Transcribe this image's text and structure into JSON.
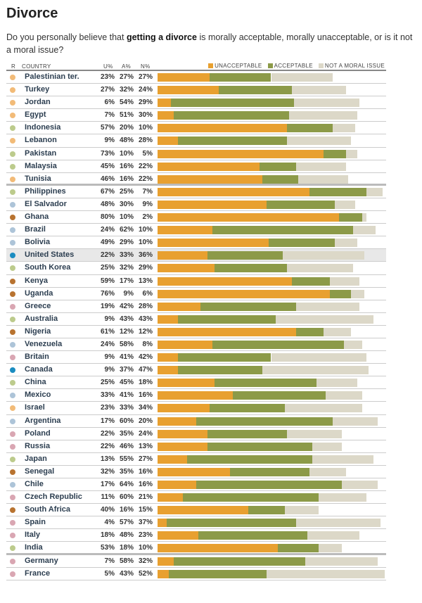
{
  "title": "Divorce",
  "question": {
    "pre": "Do you personally believe that ",
    "bold": "getting a divorce",
    "post": " is morally acceptable, morally unacceptable, or is it not a moral issue?"
  },
  "chart_data": {
    "type": "bar",
    "stacked": true,
    "orientation": "horizontal",
    "columns": {
      "region": "R",
      "country": "COUNTRY",
      "u": "U%",
      "a": "A%",
      "n": "N%"
    },
    "legend": [
      {
        "name": "UNACCEPTABLE",
        "color": "#e8a030"
      },
      {
        "name": "ACCEPTABLE",
        "color": "#8c9a48"
      },
      {
        "name": "NOT A MORAL ISSUE",
        "color": "#dcd8c8"
      }
    ],
    "legend_position": "top-right",
    "xlim": [
      0,
      100
    ],
    "region_colors": {
      "mideast": "#f2bb78",
      "asia": "#bccb8c",
      "latam": "#adc4d8",
      "africa": "#b87330",
      "europe": "#d9a6b2",
      "northam": "#1a8cc0"
    },
    "rows": [
      {
        "country": "Palestinian ter.",
        "region": "mideast",
        "u": 23,
        "a": 27,
        "n": 27
      },
      {
        "country": "Turkey",
        "region": "mideast",
        "u": 27,
        "a": 32,
        "n": 24
      },
      {
        "country": "Jordan",
        "region": "mideast",
        "u": 6,
        "a": 54,
        "n": 29
      },
      {
        "country": "Egypt",
        "region": "mideast",
        "u": 7,
        "a": 51,
        "n": 30
      },
      {
        "country": "Indonesia",
        "region": "asia",
        "u": 57,
        "a": 20,
        "n": 10
      },
      {
        "country": "Lebanon",
        "region": "mideast",
        "u": 9,
        "a": 48,
        "n": 28
      },
      {
        "country": "Pakistan",
        "region": "asia",
        "u": 73,
        "a": 10,
        "n": 5
      },
      {
        "country": "Malaysia",
        "region": "asia",
        "u": 45,
        "a": 16,
        "n": 22
      },
      {
        "country": "Tunisia",
        "region": "mideast",
        "u": 46,
        "a": 16,
        "n": 22
      },
      {
        "country": "Philippines",
        "region": "asia",
        "u": 67,
        "a": 25,
        "n": 7
      },
      {
        "country": "El Salvador",
        "region": "latam",
        "u": 48,
        "a": 30,
        "n": 9
      },
      {
        "country": "Ghana",
        "region": "africa",
        "u": 80,
        "a": 10,
        "n": 2
      },
      {
        "country": "Brazil",
        "region": "latam",
        "u": 24,
        "a": 62,
        "n": 10
      },
      {
        "country": "Bolivia",
        "region": "latam",
        "u": 49,
        "a": 29,
        "n": 10
      },
      {
        "country": "United States",
        "region": "northam",
        "u": 22,
        "a": 33,
        "n": 36,
        "highlight": true
      },
      {
        "country": "South Korea",
        "region": "asia",
        "u": 25,
        "a": 32,
        "n": 29
      },
      {
        "country": "Kenya",
        "region": "africa",
        "u": 59,
        "a": 17,
        "n": 13
      },
      {
        "country": "Uganda",
        "region": "africa",
        "u": 76,
        "a": 9,
        "n": 6
      },
      {
        "country": "Greece",
        "region": "europe",
        "u": 19,
        "a": 42,
        "n": 28
      },
      {
        "country": "Australia",
        "region": "asia",
        "u": 9,
        "a": 43,
        "n": 43
      },
      {
        "country": "Nigeria",
        "region": "africa",
        "u": 61,
        "a": 12,
        "n": 12
      },
      {
        "country": "Venezuela",
        "region": "latam",
        "u": 24,
        "a": 58,
        "n": 8
      },
      {
        "country": "Britain",
        "region": "europe",
        "u": 9,
        "a": 41,
        "n": 42
      },
      {
        "country": "Canada",
        "region": "northam",
        "u": 9,
        "a": 37,
        "n": 47
      },
      {
        "country": "China",
        "region": "asia",
        "u": 25,
        "a": 45,
        "n": 18
      },
      {
        "country": "Mexico",
        "region": "latam",
        "u": 33,
        "a": 41,
        "n": 16
      },
      {
        "country": "Israel",
        "region": "mideast",
        "u": 23,
        "a": 33,
        "n": 34
      },
      {
        "country": "Argentina",
        "region": "latam",
        "u": 17,
        "a": 60,
        "n": 20
      },
      {
        "country": "Poland",
        "region": "europe",
        "u": 22,
        "a": 35,
        "n": 24
      },
      {
        "country": "Russia",
        "region": "europe",
        "u": 22,
        "a": 46,
        "n": 13
      },
      {
        "country": "Japan",
        "region": "asia",
        "u": 13,
        "a": 55,
        "n": 27
      },
      {
        "country": "Senegal",
        "region": "africa",
        "u": 32,
        "a": 35,
        "n": 16
      },
      {
        "country": "Chile",
        "region": "latam",
        "u": 17,
        "a": 64,
        "n": 16
      },
      {
        "country": "Czech Republic",
        "region": "europe",
        "u": 11,
        "a": 60,
        "n": 21
      },
      {
        "country": "South Africa",
        "region": "africa",
        "u": 40,
        "a": 16,
        "n": 15
      },
      {
        "country": "Spain",
        "region": "europe",
        "u": 4,
        "a": 57,
        "n": 37
      },
      {
        "country": "Italy",
        "region": "europe",
        "u": 18,
        "a": 48,
        "n": 23
      },
      {
        "country": "India",
        "region": "asia",
        "u": 53,
        "a": 18,
        "n": 10
      },
      {
        "country": "Germany",
        "region": "europe",
        "u": 7,
        "a": 58,
        "n": 32
      },
      {
        "country": "France",
        "region": "europe",
        "u": 5,
        "a": 43,
        "n": 52
      }
    ],
    "group_breaks_after": [
      "Tunisia",
      "India"
    ]
  }
}
